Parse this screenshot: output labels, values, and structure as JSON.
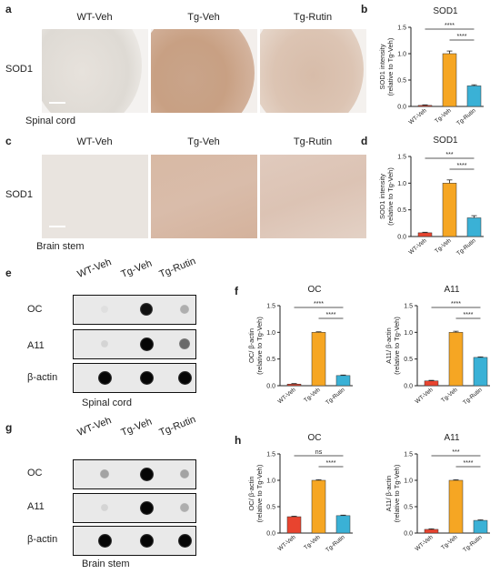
{
  "colors": {
    "wt_veh": "#e8442f",
    "tg_veh": "#f6a623",
    "tg_rutin": "#3ab1d6",
    "stain": "#b57a55"
  },
  "panel_letters": {
    "a": "a",
    "b": "b",
    "c": "c",
    "d": "d",
    "e": "e",
    "f": "f",
    "g": "g",
    "h": "h"
  },
  "panel_a": {
    "groups": [
      "WT-Veh",
      "Tg-Veh",
      "Tg-Rutin"
    ],
    "row_label": "SOD1",
    "tissue": "Spinal cord"
  },
  "panel_c": {
    "groups": [
      "WT-Veh",
      "Tg-Veh",
      "Tg-Rutin"
    ],
    "row_label": "SOD1",
    "tissue": "Brain stem"
  },
  "panel_e": {
    "groups": [
      "WT-Veh",
      "Tg-Veh",
      "Tg-Rutin"
    ],
    "rows": [
      "OC",
      "A11",
      "β-actin"
    ],
    "tissue": "Spinal cord",
    "dot_levels": [
      [
        0.03,
        0.95,
        0.25
      ],
      [
        0.08,
        1.0,
        0.55
      ],
      [
        1.0,
        1.0,
        1.0
      ]
    ]
  },
  "panel_g": {
    "groups": [
      "WT-Veh",
      "Tg-Veh",
      "Tg-Rutin"
    ],
    "rows": [
      "OC",
      "A11",
      "β-actin"
    ],
    "tissue": "Brain stem",
    "dot_levels": [
      [
        0.3,
        1.0,
        0.3
      ],
      [
        0.08,
        1.0,
        0.25
      ],
      [
        1.0,
        1.0,
        1.0
      ]
    ]
  },
  "chart_data": [
    {
      "id": "b",
      "type": "bar",
      "title": "SOD1",
      "ylabel": "SOD1 intensity",
      "ylabel2": "(relative to Tg-Veh)",
      "categories": [
        "WT-Veh",
        "Tg-Veh",
        "Tg-Rutin"
      ],
      "values": [
        0.02,
        1.0,
        0.39
      ],
      "errors": [
        0.01,
        0.05,
        0.02
      ],
      "ylim": [
        0,
        1.5
      ],
      "yticks": [
        "0.0",
        "0.5",
        "1.0",
        "1.5"
      ],
      "sig": [
        {
          "from": 0,
          "to": 2,
          "label": "****"
        },
        {
          "from": 1,
          "to": 2,
          "label": "****"
        }
      ]
    },
    {
      "id": "d",
      "type": "bar",
      "title": "SOD1",
      "ylabel": "SOD1 intensity",
      "ylabel2": "(relative to Tg-Veh)",
      "categories": [
        "WT-Veh",
        "Tg-Veh",
        "Tg-Rutin"
      ],
      "values": [
        0.07,
        1.0,
        0.35
      ],
      "errors": [
        0.01,
        0.06,
        0.04
      ],
      "ylim": [
        0,
        1.5
      ],
      "yticks": [
        "0.0",
        "0.5",
        "1.0",
        "1.5"
      ],
      "sig": [
        {
          "from": 0,
          "to": 2,
          "label": "***"
        },
        {
          "from": 1,
          "to": 2,
          "label": "****"
        }
      ]
    },
    {
      "id": "f1",
      "type": "bar",
      "title": "OC",
      "ylabel": "OC/ β-actin",
      "ylabel2": "(relative to Tg-Veh)",
      "categories": [
        "WT-Veh",
        "Tg-Veh",
        "Tg-Rutin"
      ],
      "values": [
        0.03,
        1.0,
        0.19
      ],
      "errors": [
        0.01,
        0.01,
        0.01
      ],
      "ylim": [
        0,
        1.5
      ],
      "yticks": [
        "0.0",
        "0.5",
        "1.0",
        "1.5"
      ],
      "sig": [
        {
          "from": 0,
          "to": 2,
          "label": "****"
        },
        {
          "from": 1,
          "to": 2,
          "label": "****"
        }
      ]
    },
    {
      "id": "f2",
      "type": "bar",
      "title": "A11",
      "ylabel": "A11/ β-actin",
      "ylabel2": "(relative to Tg-Veh)",
      "categories": [
        "WT-Veh",
        "Tg-Veh",
        "Tg-Rutin"
      ],
      "values": [
        0.09,
        1.0,
        0.53
      ],
      "errors": [
        0.01,
        0.02,
        0.01
      ],
      "ylim": [
        0,
        1.5
      ],
      "yticks": [
        "0.0",
        "0.5",
        "1.0",
        "1.5"
      ],
      "sig": [
        {
          "from": 0,
          "to": 2,
          "label": "****"
        },
        {
          "from": 1,
          "to": 2,
          "label": "****"
        }
      ]
    },
    {
      "id": "h1",
      "type": "bar",
      "title": "OC",
      "ylabel": "OC/ β-actin",
      "ylabel2": "(relative to Tg-Veh)",
      "categories": [
        "WT-Veh",
        "Tg-Veh",
        "Tg-Rutin"
      ],
      "values": [
        0.31,
        1.0,
        0.33
      ],
      "errors": [
        0.01,
        0.01,
        0.01
      ],
      "ylim": [
        0,
        1.5
      ],
      "yticks": [
        "0.0",
        "0.5",
        "1.0",
        "1.5"
      ],
      "sig": [
        {
          "from": 0,
          "to": 2,
          "label": "ns"
        },
        {
          "from": 1,
          "to": 2,
          "label": "****"
        }
      ]
    },
    {
      "id": "h2",
      "type": "bar",
      "title": "A11",
      "ylabel": "A11/ β-actin",
      "ylabel2": "(relative to Tg-Veh)",
      "categories": [
        "WT-Veh",
        "Tg-Veh",
        "Tg-Rutin"
      ],
      "values": [
        0.07,
        1.0,
        0.24
      ],
      "errors": [
        0.01,
        0.01,
        0.01
      ],
      "ylim": [
        0,
        1.5
      ],
      "yticks": [
        "0.0",
        "0.5",
        "1.0",
        "1.5"
      ],
      "sig": [
        {
          "from": 0,
          "to": 2,
          "label": "***"
        },
        {
          "from": 1,
          "to": 2,
          "label": "****"
        }
      ]
    }
  ]
}
